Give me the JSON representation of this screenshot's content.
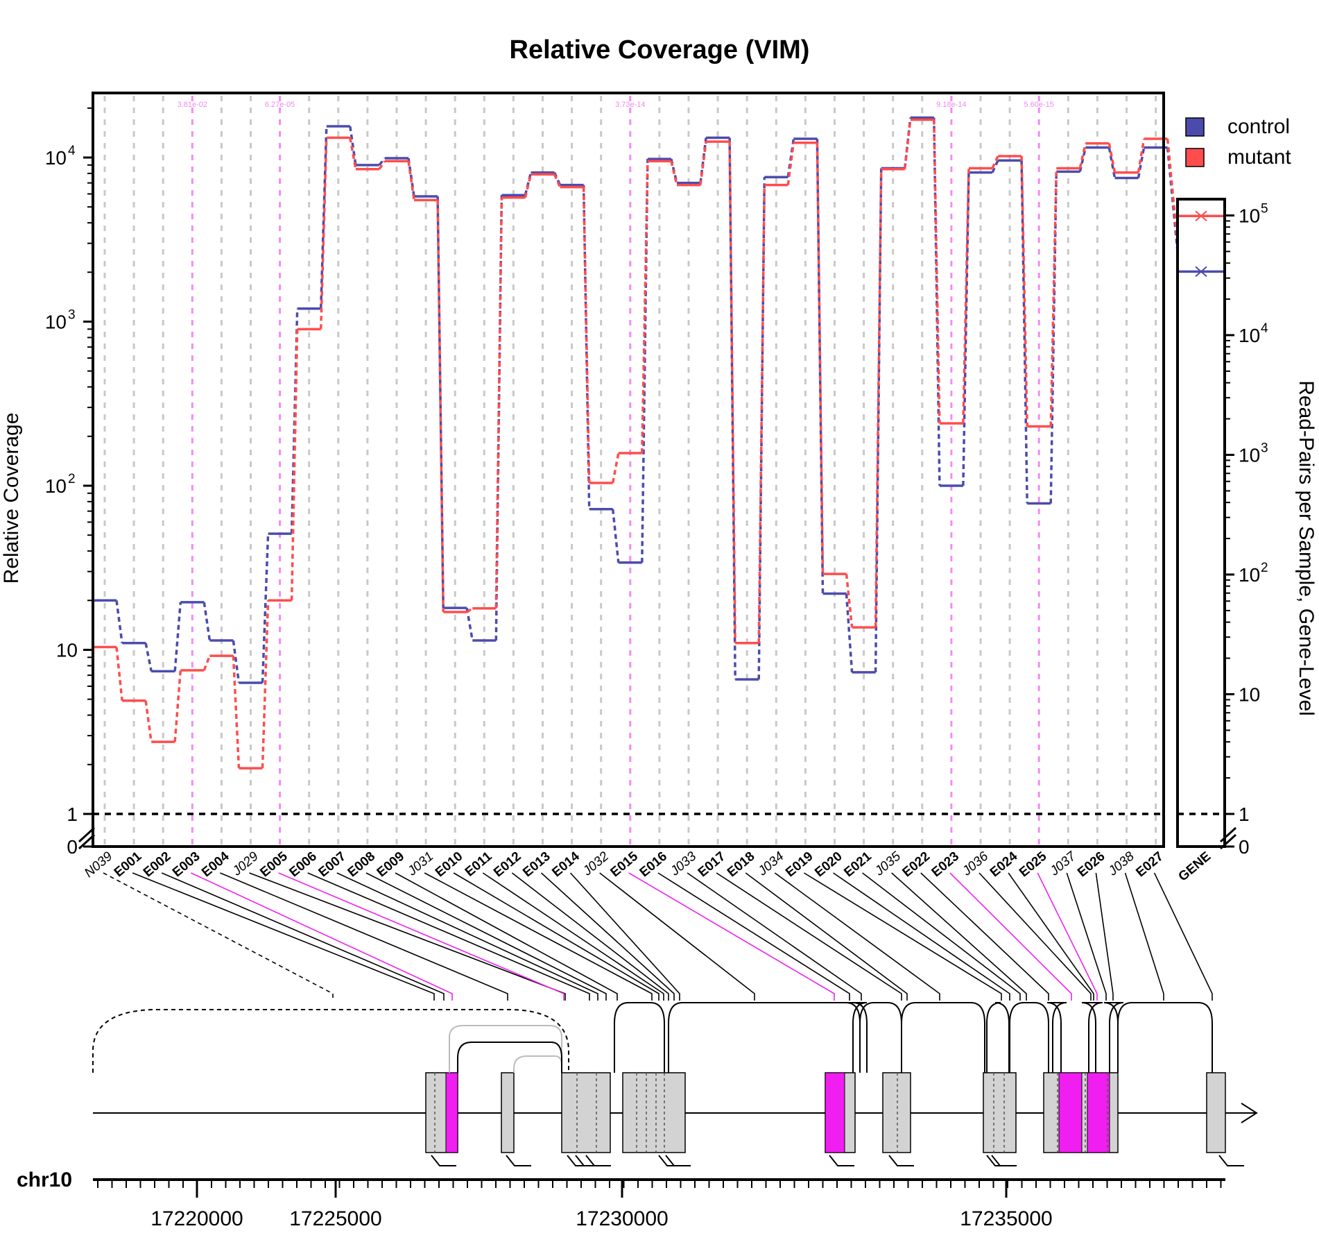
{
  "chart_data": {
    "type": "line",
    "title": "Relative Coverage (VIM)",
    "ylabel": "Relative Coverage",
    "ylabel_right": "Read-Pairs per Sample, Gene-Level",
    "y_scale": "log",
    "y_ticks_left": [
      {
        "value": 0,
        "label": "0",
        "sup": ""
      },
      {
        "value": 1,
        "label": "1",
        "sup": ""
      },
      {
        "value": 10,
        "label": "10",
        "sup": ""
      },
      {
        "value": 100,
        "label": "10",
        "sup": "2"
      },
      {
        "value": 1000,
        "label": "10",
        "sup": "3"
      },
      {
        "value": 10000,
        "label": "10",
        "sup": "4"
      }
    ],
    "y_ticks_right": [
      {
        "value": 0,
        "label": "0",
        "sup": ""
      },
      {
        "value": 1,
        "label": "1",
        "sup": ""
      },
      {
        "value": 10,
        "label": "10",
        "sup": ""
      },
      {
        "value": 100,
        "label": "10",
        "sup": "2"
      },
      {
        "value": 1000,
        "label": "10",
        "sup": "3"
      },
      {
        "value": 10000,
        "label": "10",
        "sup": "4"
      },
      {
        "value": 100000,
        "label": "10",
        "sup": "5"
      }
    ],
    "legend": {
      "position": "top-right",
      "entries": [
        {
          "name": "control",
          "color": "#4b4bad"
        },
        {
          "name": "mutant",
          "color": "#ff4d4d"
        }
      ]
    },
    "features": [
      "N039",
      "E001",
      "E002",
      "E003",
      "E004",
      "J029",
      "E005",
      "E006",
      "E007",
      "E008",
      "E009",
      "J031",
      "E010",
      "E011",
      "E012",
      "E013",
      "E014",
      "J032",
      "E015",
      "E016",
      "J033",
      "E017",
      "E018",
      "J034",
      "E019",
      "E020",
      "E021",
      "J035",
      "E022",
      "E023",
      "J036",
      "E024",
      "E025",
      "J037",
      "E026",
      "J038",
      "E027"
    ],
    "feature_kind": [
      "junction",
      "exon",
      "exon",
      "exon",
      "exon",
      "junction",
      "exon",
      "exon",
      "exon",
      "exon",
      "exon",
      "junction",
      "exon",
      "exon",
      "exon",
      "exon",
      "exon",
      "junction",
      "exon",
      "exon",
      "junction",
      "exon",
      "exon",
      "junction",
      "exon",
      "exon",
      "exon",
      "junction",
      "exon",
      "exon",
      "junction",
      "exon",
      "exon",
      "junction",
      "exon",
      "junction",
      "exon"
    ],
    "series": [
      {
        "name": "control",
        "color": "#4b4bad",
        "values": [
          20,
          11,
          7.4,
          19.5,
          11.4,
          6.3,
          51,
          1200,
          15500,
          9000,
          9900,
          5800,
          18,
          11.4,
          5900,
          8100,
          6800,
          72,
          34,
          9800,
          7000,
          13200,
          6.6,
          7600,
          13000,
          22,
          7.3,
          8600,
          17500,
          100,
          8100,
          9600,
          78,
          8200,
          11500,
          7500,
          11500
        ]
      },
      {
        "name": "mutant",
        "color": "#ff4d4d",
        "values": [
          10.4,
          4.9,
          2.75,
          7.5,
          9.2,
          1.9,
          20,
          900,
          13200,
          8500,
          9500,
          5500,
          17,
          17.9,
          5700,
          7900,
          6600,
          104,
          158,
          9500,
          6800,
          12500,
          11,
          6800,
          12300,
          29,
          13.7,
          8500,
          17000,
          240,
          8600,
          10200,
          230,
          8600,
          12200,
          8100,
          13000
        ]
      }
    ],
    "significant": [
      {
        "feature": "E003",
        "pvalue": "3.81e-02"
      },
      {
        "feature": "E005",
        "pvalue": "6.27e-05"
      },
      {
        "feature": "E015",
        "pvalue": "3.73e-14"
      },
      {
        "feature": "E023",
        "pvalue": "9.18e-14"
      },
      {
        "feature": "E025",
        "pvalue": "5.60e-15"
      }
    ],
    "gene_panel": {
      "label": "GENE",
      "control": 34000,
      "mutant": 99000
    },
    "gene_track": {
      "chromosome": "chr10",
      "coord_labels": [
        "17220000",
        "17225000",
        "17230000",
        "17235000"
      ]
    }
  }
}
